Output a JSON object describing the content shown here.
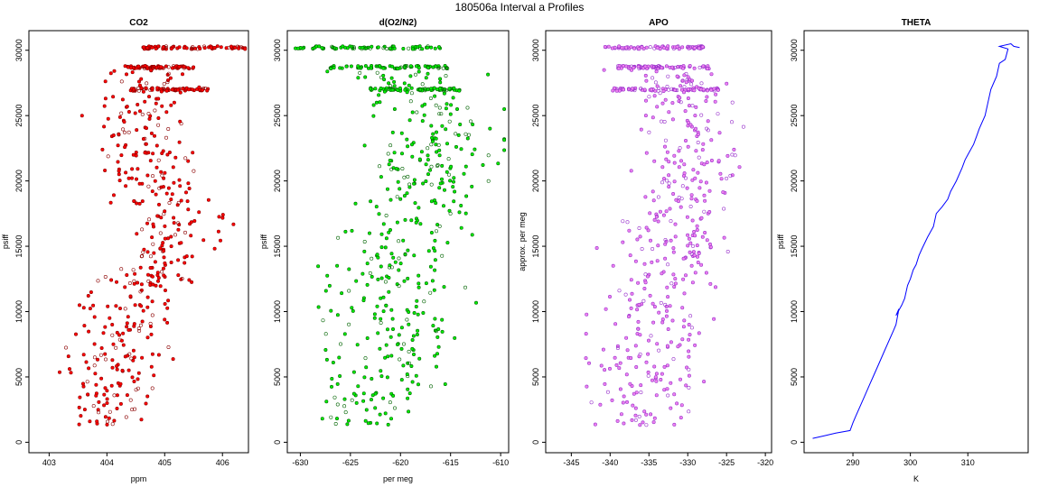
{
  "figure": {
    "title": "180506a   Interval a Profiles"
  },
  "chart_data": [
    {
      "type": "scatter",
      "title": "CO2",
      "xlabel": "ppm",
      "ylabel": "psiff",
      "xlim": [
        402.65,
        406.45
      ],
      "ylim": [
        -800,
        31500
      ],
      "xticks": [
        403,
        404,
        405,
        406
      ],
      "yticks": [
        0,
        5000,
        10000,
        15000,
        20000,
        25000,
        30000
      ],
      "point_color": "#ff0000",
      "edge_color": "#8b0000",
      "trend": {
        "x": [
          403.9,
          404.1,
          404.3,
          404.5,
          404.9,
          405.3,
          405.0,
          404.8,
          404.6,
          404.7,
          404.9
        ],
        "y": [
          1500,
          4000,
          8000,
          11000,
          14000,
          16500,
          19000,
          21500,
          24000,
          27000,
          30200
        ]
      },
      "spread": 0.4,
      "dense_rows": [
        {
          "y": 30200,
          "x_range": [
            404.5,
            406.4
          ]
        },
        {
          "y": 28700,
          "x_range": [
            404.3,
            405.5
          ]
        },
        {
          "y": 27000,
          "x_range": [
            404.4,
            405.8
          ]
        }
      ],
      "point_count": 420
    },
    {
      "type": "scatter",
      "title": "d(O2/N2)",
      "xlabel": "per meg",
      "ylabel": "psiff",
      "xlim": [
        -631.3,
        -609.2
      ],
      "ylim": [
        -800,
        31500
      ],
      "xticks": [
        -630,
        -625,
        -620,
        -615,
        -610
      ],
      "yticks": [
        0,
        5000,
        10000,
        15000,
        20000,
        25000,
        30000
      ],
      "point_color": "#00ee00",
      "edge_color": "#006400",
      "trend": {
        "x": [
          -622,
          -621.5,
          -621,
          -620.5,
          -620.5,
          -619.5,
          -618.5,
          -617,
          -615.5,
          -617,
          -619,
          -621,
          -624
        ],
        "y": [
          1500,
          4000,
          7000,
          10000,
          13000,
          15500,
          18000,
          20500,
          23000,
          25500,
          27000,
          28700,
          30200
        ]
      },
      "spread": 3.2,
      "dense_rows": [
        {
          "y": 30200,
          "x_range": [
            -630.5,
            -616
          ]
        },
        {
          "y": 28700,
          "x_range": [
            -627,
            -615
          ]
        },
        {
          "y": 27000,
          "x_range": [
            -623,
            -614
          ]
        }
      ],
      "point_count": 420
    },
    {
      "type": "scatter",
      "title": "APO",
      "xlabel": "",
      "ylabel": "approx. per meg",
      "xlim": [
        -348.3,
        -319.2
      ],
      "ylim": [
        -800,
        31500
      ],
      "xticks": [
        -345,
        -340,
        -335,
        -330,
        -325,
        -320
      ],
      "yticks": [
        0,
        5000,
        10000,
        15000,
        20000,
        25000,
        30000
      ],
      "point_color": "#ee82ee",
      "edge_color": "#9932cc",
      "trend": {
        "x": [
          -336,
          -335.5,
          -334.5,
          -334,
          -333,
          -332,
          -331,
          -330,
          -330,
          -331,
          -333
        ],
        "y": [
          1500,
          4000,
          7000,
          10000,
          13000,
          16000,
          19000,
          22000,
          25000,
          27500,
          30200
        ]
      },
      "spread": 3.6,
      "dense_rows": [
        {
          "y": 30200,
          "x_range": [
            -341,
            -328
          ]
        },
        {
          "y": 28700,
          "x_range": [
            -339,
            -327
          ]
        },
        {
          "y": 27000,
          "x_range": [
            -340,
            -326
          ]
        }
      ],
      "point_count": 420
    },
    {
      "type": "line",
      "title": "THETA",
      "xlabel": "K",
      "ylabel": "psiff",
      "xlim": [
        281.5,
        320.5
      ],
      "ylim": [
        -800,
        31500
      ],
      "xticks": [
        290,
        300,
        310
      ],
      "yticks": [
        0,
        5000,
        10000,
        15000,
        20000,
        25000,
        30000
      ],
      "line_color": "#0000ff",
      "x": [
        283,
        285,
        287,
        289.5,
        290,
        290.5,
        291.5,
        292,
        293,
        293.5,
        294.5,
        295.5,
        296.5,
        297,
        297.5,
        298,
        297.5,
        298.5,
        299,
        299.5,
        300,
        300.5,
        301,
        301.5,
        302,
        303,
        304,
        304.5,
        305.5,
        306.5,
        307,
        308,
        309,
        309.5,
        310,
        311,
        311.5,
        312,
        313,
        313.5,
        314,
        314.5,
        315,
        315.5,
        316.5,
        317,
        315.5,
        317.5,
        318,
        319
      ],
      "y": [
        300,
        500,
        700,
        900,
        1500,
        2000,
        3000,
        3500,
        4500,
        5000,
        6000,
        7000,
        8000,
        8500,
        9000,
        10200,
        9700,
        10500,
        11000,
        12000,
        12500,
        13200,
        13600,
        14300,
        14800,
        15700,
        16500,
        17500,
        18000,
        18600,
        19200,
        20000,
        21000,
        21600,
        22000,
        22800,
        23400,
        24000,
        25000,
        26000,
        27000,
        27500,
        28000,
        29000,
        29300,
        30100,
        30300,
        30500,
        30300,
        30200
      ]
    }
  ]
}
